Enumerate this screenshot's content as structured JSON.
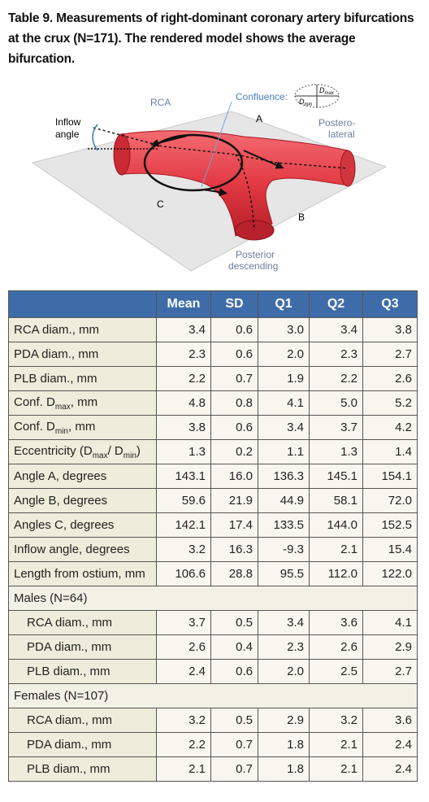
{
  "header": {
    "title": "Table 9. Measurements of right-dominant coronary artery bifurcations at the crux (N=171). The rendered model shows the average bifurcation."
  },
  "figure": {
    "labels": {
      "rca": "RCA",
      "confluence": "Confluence:",
      "d_max": [
        "D",
        "max"
      ],
      "d_min": [
        "D",
        "min"
      ],
      "a": "A",
      "posterolateral": [
        "Postero-",
        "lateral"
      ],
      "inflow": [
        "Inflow",
        "angle"
      ],
      "c": "C",
      "b": "B",
      "posterior": [
        "Posterior",
        "descending"
      ]
    }
  },
  "table": {
    "columns": [
      "Mean",
      "SD",
      "Q1",
      "Q2",
      "Q3"
    ],
    "rows": [
      {
        "label": [
          "RCA diam., mm"
        ],
        "values": [
          "3.4",
          "0.6",
          "3.0",
          "3.4",
          "3.8"
        ]
      },
      {
        "label": [
          "PDA diam., mm"
        ],
        "values": [
          "2.3",
          "0.6",
          "2.0",
          "2.3",
          "2.7"
        ]
      },
      {
        "label": [
          "PLB diam., mm"
        ],
        "values": [
          "2.2",
          "0.7",
          "1.9",
          "2.2",
          "2.6"
        ]
      },
      {
        "label": [
          "Conf. D",
          "max",
          ", mm"
        ],
        "values": [
          "4.8",
          "0.8",
          "4.1",
          "5.0",
          "5.2"
        ]
      },
      {
        "label": [
          "Conf. D",
          "min",
          ", mm"
        ],
        "values": [
          "3.8",
          "0.6",
          "3.4",
          "3.7",
          "4.2"
        ]
      },
      {
        "label": [
          "Eccentricity (D",
          "max",
          "/ D",
          "min",
          ")"
        ],
        "values": [
          "1.3",
          "0.2",
          "1.1",
          "1.3",
          "1.4"
        ]
      },
      {
        "label": [
          "Angle A, degrees"
        ],
        "values": [
          "143.1",
          "16.0",
          "136.3",
          "145.1",
          "154.1"
        ]
      },
      {
        "label": [
          "Angle B, degrees"
        ],
        "values": [
          "59.6",
          "21.9",
          "44.9",
          "58.1",
          "72.0"
        ]
      },
      {
        "label": [
          "Angles C, degrees"
        ],
        "values": [
          "142.1",
          "17.4",
          "133.5",
          "144.0",
          "152.5"
        ]
      },
      {
        "label": [
          "Inflow angle, degrees"
        ],
        "values": [
          "3.2",
          "16.3",
          "-9.3",
          "2.1",
          "15.4"
        ]
      },
      {
        "label": [
          "Length from ostium, mm"
        ],
        "values": [
          "106.6",
          "28.8",
          "95.5",
          "112.0",
          "122.0"
        ]
      },
      {
        "section": "Males (N=64)"
      },
      {
        "label": [
          "RCA diam., mm"
        ],
        "values": [
          "3.7",
          "0.5",
          "3.4",
          "3.6",
          "4.1"
        ]
      },
      {
        "label": [
          "PDA diam., mm"
        ],
        "values": [
          "2.6",
          "0.4",
          "2.3",
          "2.6",
          "2.9"
        ]
      },
      {
        "label": [
          "PLB diam., mm"
        ],
        "values": [
          "2.4",
          "0.6",
          "2.0",
          "2.5",
          "2.7"
        ]
      },
      {
        "section": "Females (N=107)"
      },
      {
        "label": [
          "RCA diam., mm"
        ],
        "values": [
          "3.2",
          "0.5",
          "2.9",
          "3.2",
          "3.6"
        ]
      },
      {
        "label": [
          "PDA diam., mm"
        ],
        "values": [
          "2.2",
          "0.7",
          "1.8",
          "2.1",
          "2.4"
        ]
      },
      {
        "label": [
          "PLB diam., mm"
        ],
        "values": [
          "2.1",
          "0.7",
          "1.8",
          "2.1",
          "2.4"
        ]
      }
    ]
  }
}
